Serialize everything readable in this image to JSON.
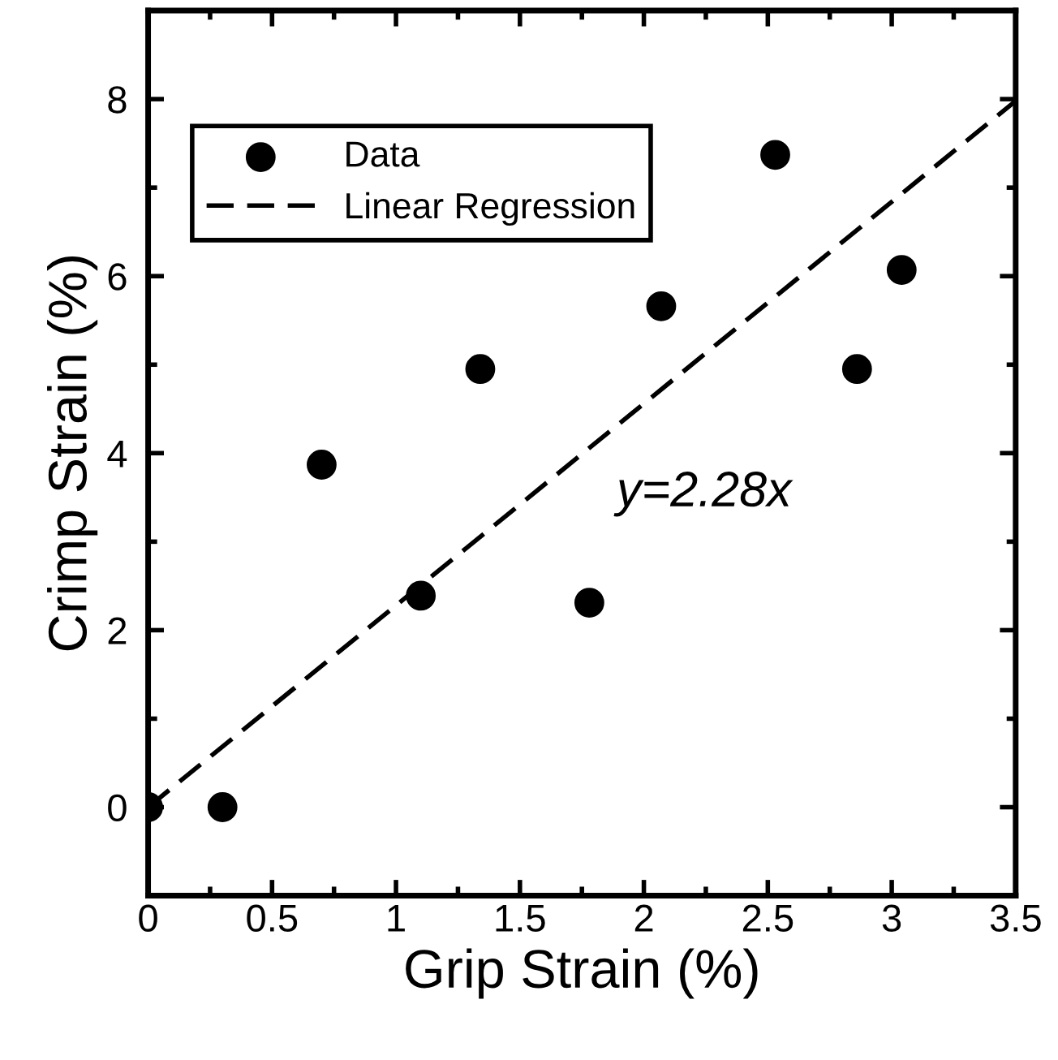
{
  "chart_data": {
    "type": "scatter",
    "xlabel": "Grip Strain (%)",
    "ylabel": "Crimp Strain (%)",
    "series": [
      {
        "name": "Data",
        "color": "#000000",
        "marker": "circle",
        "x": [
          0,
          0.3,
          0.7,
          1.1,
          1.34,
          1.78,
          2.07,
          2.53,
          2.86,
          3.04
        ],
        "values": [
          0,
          0,
          3.87,
          2.39,
          4.95,
          2.31,
          5.66,
          7.37,
          4.95,
          6.07
        ]
      },
      {
        "name": "Linear Regression",
        "type": "line",
        "color": "#000000",
        "marker": "none",
        "line_style": "dashed",
        "x": [
          0,
          3.5
        ],
        "values": [
          0,
          7.98
        ]
      }
    ],
    "annotations": [
      "y=2.28x"
    ],
    "xlim": [
      0,
      3.5
    ],
    "ylim": [
      -1,
      9
    ],
    "xticks": [
      0,
      0.5,
      1,
      1.5,
      2,
      2.5,
      3,
      3.5
    ],
    "yticks": [
      0,
      2,
      4,
      6,
      8
    ],
    "grid": false,
    "legend": "top left"
  }
}
